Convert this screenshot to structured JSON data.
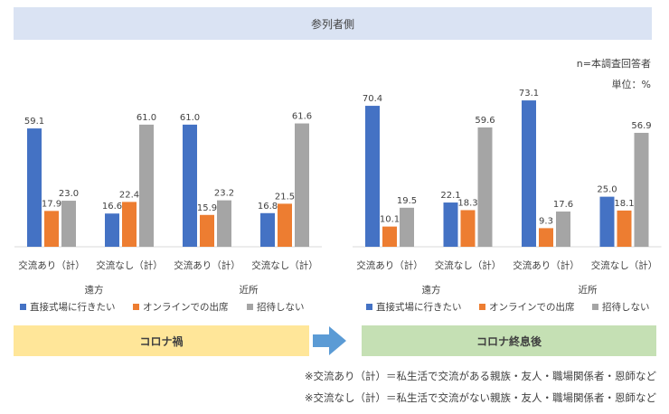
{
  "header": {
    "title": "参列者側"
  },
  "notes": {
    "n": "n=本調査回答者",
    "unit": "単位：%"
  },
  "colors": {
    "direct": "#4472c4",
    "online": "#ed7d31",
    "none": "#a5a5a5",
    "header_bg": "#dae3f3",
    "during_bg": "#ffe699",
    "after_bg": "#c5e0b4",
    "arrow": "#5b9bd5"
  },
  "chart_data": [
    {
      "type": "bar",
      "categories": [
        "交流あり（計）",
        "交流なし（計）",
        "交流あり（計）",
        "交流なし（計）"
      ],
      "groups": [
        "遠方",
        "近所"
      ],
      "series": [
        {
          "name": "直接式場に行きたい",
          "values": [
            59.1,
            16.6,
            61.0,
            16.8
          ]
        },
        {
          "name": "オンラインでの出席",
          "values": [
            17.9,
            22.4,
            15.9,
            21.5
          ]
        },
        {
          "name": "招待しない",
          "values": [
            23.0,
            61.0,
            23.2,
            61.6
          ]
        }
      ],
      "value_labels": [
        [
          "59.1",
          "16.6",
          "61.0",
          "16.8"
        ],
        [
          "17.9",
          "22.4",
          "15.9",
          "21.5"
        ],
        [
          "23.0",
          "61.0",
          "23.2",
          "61.6"
        ]
      ],
      "ylim": [
        0,
        80
      ],
      "legend": "bottom",
      "period_label": "コロナ禍"
    },
    {
      "type": "bar",
      "categories": [
        "交流あり（計）",
        "交流なし（計）",
        "交流あり（計）",
        "交流なし（計）"
      ],
      "groups": [
        "遠方",
        "近所"
      ],
      "series": [
        {
          "name": "直接式場に行きたい",
          "values": [
            70.4,
            22.1,
            73.1,
            25.0
          ]
        },
        {
          "name": "オンラインでの出席",
          "values": [
            10.1,
            18.3,
            9.3,
            18.1
          ]
        },
        {
          "name": "招待しない",
          "values": [
            19.5,
            59.6,
            17.6,
            56.9
          ]
        }
      ],
      "value_labels": [
        [
          "70.4",
          "22.1",
          "73.1",
          "25.0"
        ],
        [
          "10.1",
          "18.3",
          "9.3",
          "18.1"
        ],
        [
          "19.5",
          "59.6",
          "17.6",
          "56.9"
        ]
      ],
      "ylim": [
        0,
        80
      ],
      "legend": "bottom",
      "period_label": "コロナ終息後"
    }
  ],
  "footnotes": [
    "※交流あり（計）＝私生活で交流がある親族・友人・職場関係者・恩師など",
    "※交流なし（計）＝私生活で交流がない親族・友人・職場関係者・恩師など"
  ]
}
